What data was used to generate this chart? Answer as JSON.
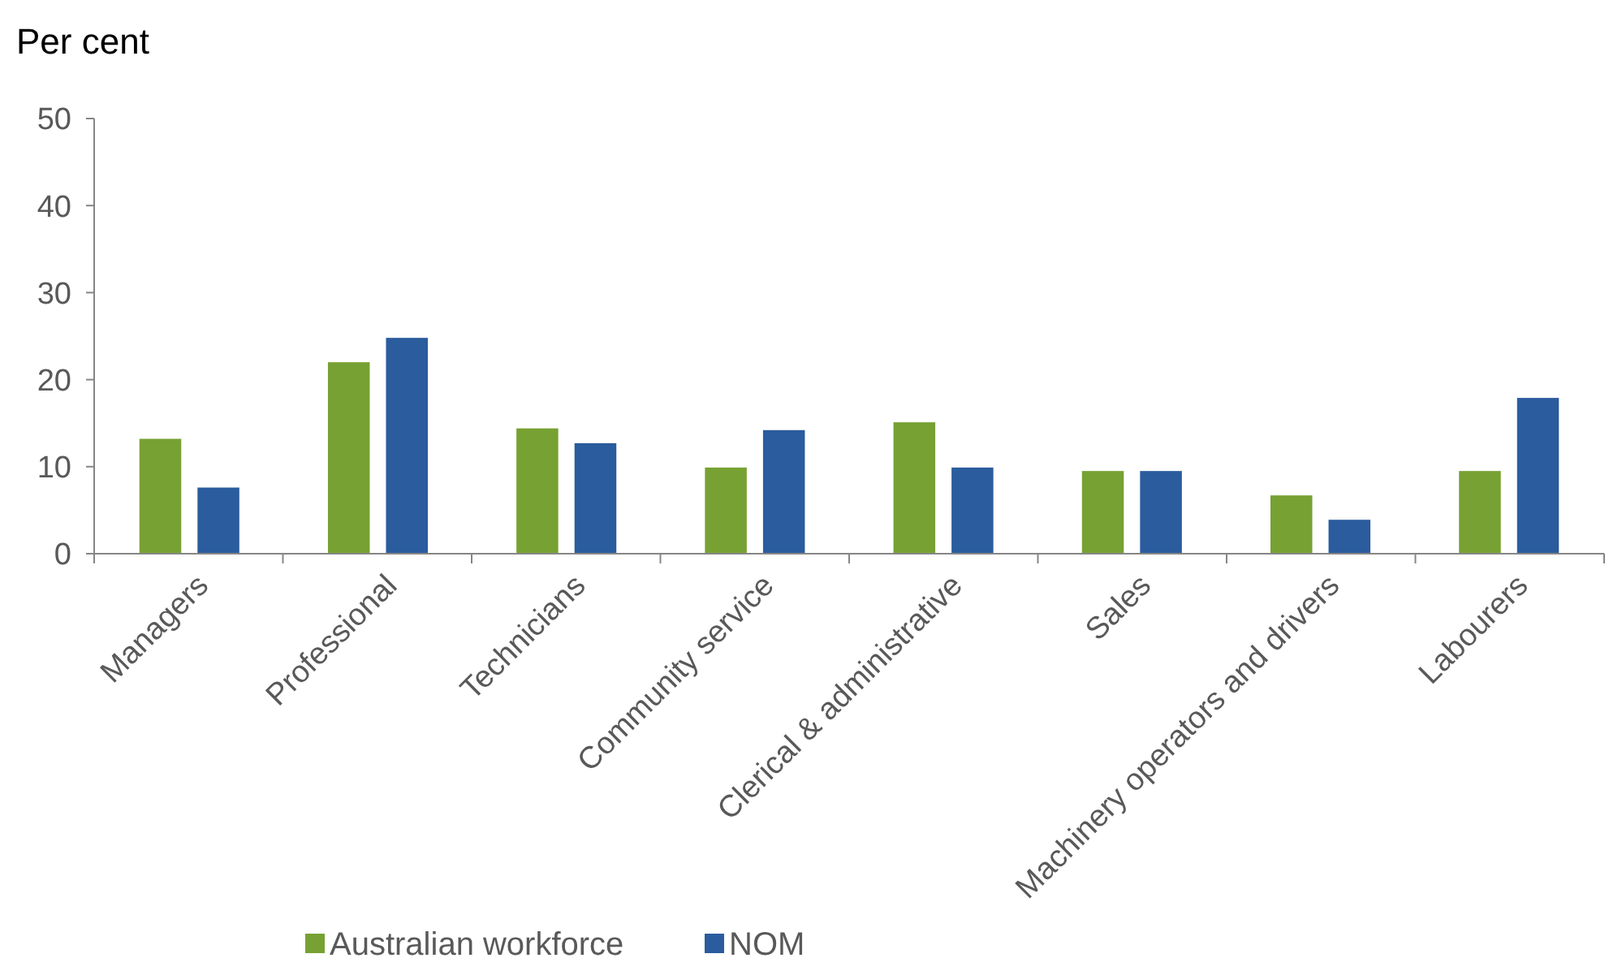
{
  "chart_data": {
    "type": "bar",
    "ylabel": "Per cent",
    "categories": [
      "Managers",
      "Professional",
      "Technicians",
      "Community service",
      "Clerical & administrative",
      "Sales",
      "Machinery operators and drivers",
      "Labourers"
    ],
    "series": [
      {
        "name": "Australian workforce",
        "color": "#77a132",
        "values": [
          13.2,
          22.0,
          14.4,
          9.9,
          15.1,
          9.5,
          6.7,
          9.5
        ]
      },
      {
        "name": "NOM",
        "color": "#2a5c9e",
        "values": [
          7.6,
          24.8,
          12.7,
          14.2,
          9.9,
          9.5,
          3.9,
          17.9
        ]
      }
    ],
    "ylim": [
      0,
      50
    ],
    "yticks": [
      0,
      10,
      20,
      30,
      40,
      50
    ],
    "grid": false,
    "legend": "bottom"
  }
}
